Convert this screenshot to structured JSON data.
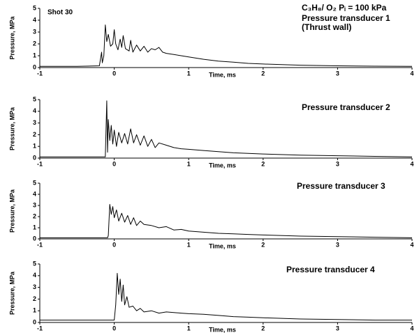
{
  "chart_data": [
    {
      "type": "line",
      "title": "Pressure transducer 1",
      "subtitle": "(Thrust wall)",
      "annotations": [
        "Shot 30",
        "C₃H₈/ O₂  Pᵢ = 100 kPa"
      ],
      "x_label": "Time, ms",
      "y_label": "Pressure, MPa",
      "color": "#000000",
      "xlim": [
        -1,
        4
      ],
      "ylim": [
        0,
        5
      ],
      "xticks": [
        -1,
        0,
        1,
        2,
        3,
        4
      ],
      "yticks": [
        0,
        1,
        2,
        3,
        4,
        5
      ],
      "grid": false,
      "x": [
        -1,
        -0.5,
        -0.2,
        -0.17,
        -0.16,
        -0.14,
        -0.12,
        -0.1,
        -0.08,
        -0.05,
        -0.02,
        0,
        0.02,
        0.05,
        0.08,
        0.1,
        0.12,
        0.15,
        0.2,
        0.22,
        0.25,
        0.3,
        0.35,
        0.4,
        0.45,
        0.5,
        0.55,
        0.6,
        0.65,
        0.7,
        0.8,
        0.9,
        1.0,
        1.2,
        1.4,
        1.6,
        1.8,
        2.0,
        2.5,
        3.0,
        3.5,
        4.0
      ],
      "values": [
        0.1,
        0.1,
        0.15,
        1.3,
        0.4,
        1.0,
        3.6,
        2.2,
        2.8,
        1.8,
        2.0,
        3.2,
        2.0,
        1.5,
        2.4,
        1.7,
        2.7,
        1.6,
        1.4,
        2.3,
        1.3,
        1.9,
        1.4,
        1.8,
        1.3,
        1.6,
        1.5,
        1.7,
        1.3,
        1.2,
        1.1,
        1.0,
        0.9,
        0.7,
        0.55,
        0.45,
        0.35,
        0.3,
        0.2,
        0.15,
        0.12,
        0.1
      ]
    },
    {
      "type": "line",
      "title": "Pressure transducer 2",
      "x_label": "Time, ms",
      "y_label": "Pressure, MPa",
      "color": "#000000",
      "xlim": [
        -1,
        4
      ],
      "ylim": [
        0,
        5
      ],
      "xticks": [
        -1,
        0,
        1,
        2,
        3,
        4
      ],
      "yticks": [
        0,
        1,
        2,
        3,
        4,
        5
      ],
      "grid": false,
      "x": [
        -1,
        -0.5,
        -0.12,
        -0.1,
        -0.09,
        -0.08,
        -0.06,
        -0.04,
        -0.02,
        0,
        0.03,
        0.06,
        0.1,
        0.14,
        0.18,
        0.22,
        0.26,
        0.3,
        0.35,
        0.4,
        0.45,
        0.5,
        0.55,
        0.6,
        0.7,
        0.8,
        0.9,
        1.0,
        1.2,
        1.4,
        1.6,
        1.8,
        2.0,
        2.5,
        3.0,
        3.5,
        4.0
      ],
      "values": [
        0.1,
        0.1,
        0.1,
        4.9,
        0.5,
        3.3,
        1.5,
        2.8,
        1.2,
        2.4,
        1.0,
        2.2,
        1.3,
        2.1,
        1.2,
        2.5,
        1.3,
        2.0,
        1.1,
        1.9,
        1.0,
        1.6,
        0.9,
        1.3,
        1.1,
        0.9,
        0.8,
        0.75,
        0.65,
        0.55,
        0.45,
        0.4,
        0.35,
        0.25,
        0.2,
        0.15,
        0.1
      ]
    },
    {
      "type": "line",
      "title": "Pressure transducer 3",
      "x_label": "Time, ms",
      "y_label": "Pressure, MPa",
      "color": "#000000",
      "xlim": [
        -1,
        4
      ],
      "ylim": [
        0,
        5
      ],
      "xticks": [
        -1,
        0,
        1,
        2,
        3,
        4
      ],
      "yticks": [
        0,
        1,
        2,
        3,
        4,
        5
      ],
      "grid": false,
      "x": [
        -1,
        -0.5,
        -0.09,
        -0.08,
        -0.06,
        -0.04,
        -0.02,
        0,
        0.03,
        0.06,
        0.1,
        0.14,
        0.18,
        0.22,
        0.26,
        0.3,
        0.35,
        0.4,
        0.5,
        0.6,
        0.7,
        0.8,
        0.9,
        1.0,
        1.2,
        1.4,
        1.6,
        1.8,
        2.0,
        2.5,
        3.0,
        3.5,
        4.0
      ],
      "values": [
        0.1,
        0.1,
        0.1,
        0.3,
        3.1,
        2.2,
        2.9,
        1.9,
        2.6,
        1.6,
        2.3,
        1.5,
        2.1,
        1.3,
        1.9,
        1.2,
        1.6,
        1.3,
        1.2,
        1.0,
        1.1,
        0.8,
        0.85,
        0.7,
        0.6,
        0.5,
        0.45,
        0.4,
        0.35,
        0.25,
        0.2,
        0.15,
        0.1
      ]
    },
    {
      "type": "line",
      "title": "Pressure transducer 4",
      "x_label": "Time, ms",
      "y_label": "Pressure, MPa",
      "color": "#000000",
      "xlim": [
        -1,
        4
      ],
      "ylim": [
        0,
        5
      ],
      "xticks": [
        -1,
        0,
        1,
        2,
        3,
        4
      ],
      "yticks": [
        0,
        1,
        2,
        3,
        4,
        5
      ],
      "grid": false,
      "x": [
        -1,
        -0.5,
        0,
        0.02,
        0.04,
        0.06,
        0.08,
        0.1,
        0.12,
        0.14,
        0.17,
        0.2,
        0.25,
        0.3,
        0.35,
        0.4,
        0.5,
        0.6,
        0.7,
        0.8,
        0.9,
        1.0,
        1.2,
        1.4,
        1.6,
        1.8,
        2.0,
        2.5,
        3.0,
        3.5,
        4.0
      ],
      "values": [
        0.2,
        0.2,
        0.2,
        1.5,
        4.2,
        2.4,
        3.7,
        1.8,
        3.2,
        1.5,
        2.2,
        1.3,
        1.4,
        1.0,
        1.2,
        0.9,
        1.0,
        0.8,
        0.9,
        0.85,
        0.8,
        0.75,
        0.7,
        0.6,
        0.5,
        0.45,
        0.4,
        0.3,
        0.25,
        0.2,
        0.2
      ]
    }
  ]
}
